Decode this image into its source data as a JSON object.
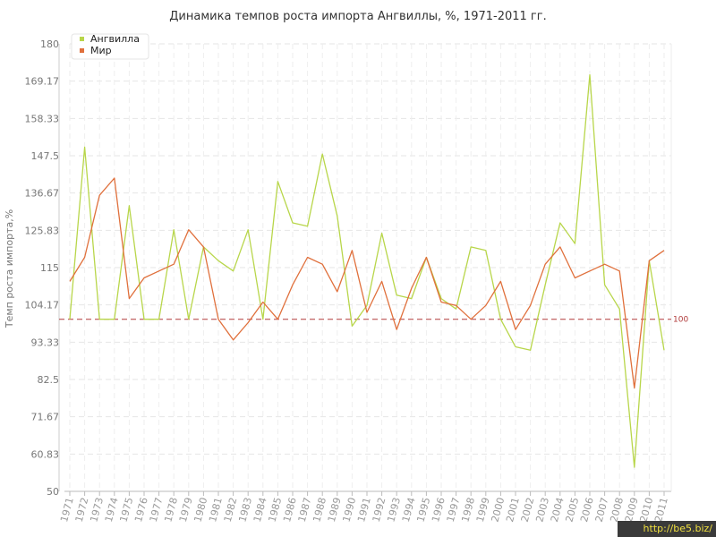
{
  "chart_data": {
    "type": "line",
    "title": "Динамика темпов роста импорта Ангвиллы, %, 1971-2011 гг.",
    "ylabel": "Темп роста импорта,%",
    "xlabel": "",
    "ylim": [
      50,
      180
    ],
    "yticks": [
      "50",
      "60.83",
      "71.67",
      "82.5",
      "93.33",
      "104.17",
      "115",
      "125.83",
      "136.67",
      "147.5",
      "158.33",
      "169.17",
      "180"
    ],
    "reference_line": {
      "value": 100,
      "label": "100",
      "color": "#b03a3a"
    },
    "grid": true,
    "legend_position": "top-left",
    "x": [
      "1971",
      "1972",
      "1973",
      "1974",
      "1975",
      "1976",
      "1977",
      "1978",
      "1979",
      "1980",
      "1981",
      "1982",
      "1983",
      "1984",
      "1985",
      "1986",
      "1987",
      "1988",
      "1989",
      "1990",
      "1991",
      "1992",
      "1993",
      "1994",
      "1995",
      "1996",
      "1997",
      "1998",
      "1999",
      "2000",
      "2001",
      "2002",
      "2003",
      "2004",
      "2005",
      "2006",
      "2007",
      "2008",
      "2009",
      "2010",
      "2011"
    ],
    "series": [
      {
        "name": "Ангвилла",
        "color": "#b8d64a",
        "values": [
          100,
          150,
          100,
          100,
          133,
          100,
          100,
          126,
          100,
          121,
          117,
          114,
          126,
          100,
          140,
          128,
          127,
          148,
          130,
          98,
          104,
          125,
          107,
          106,
          118,
          106,
          103,
          121,
          120,
          100,
          92,
          91,
          110,
          128,
          122,
          171,
          110,
          103,
          57,
          117,
          91
        ]
      },
      {
        "name": "Мир",
        "color": "#e0703c",
        "values": [
          111,
          118,
          136,
          141,
          106,
          112,
          114,
          116,
          126,
          121,
          100,
          94,
          99,
          105,
          100,
          110,
          118,
          116,
          108,
          120,
          102,
          111,
          97,
          109,
          118,
          105,
          104,
          100,
          104,
          111,
          97,
          104,
          116,
          121,
          112,
          114,
          116,
          114,
          80,
          117,
          120
        ]
      }
    ]
  },
  "watermark": "http://be5.biz/"
}
